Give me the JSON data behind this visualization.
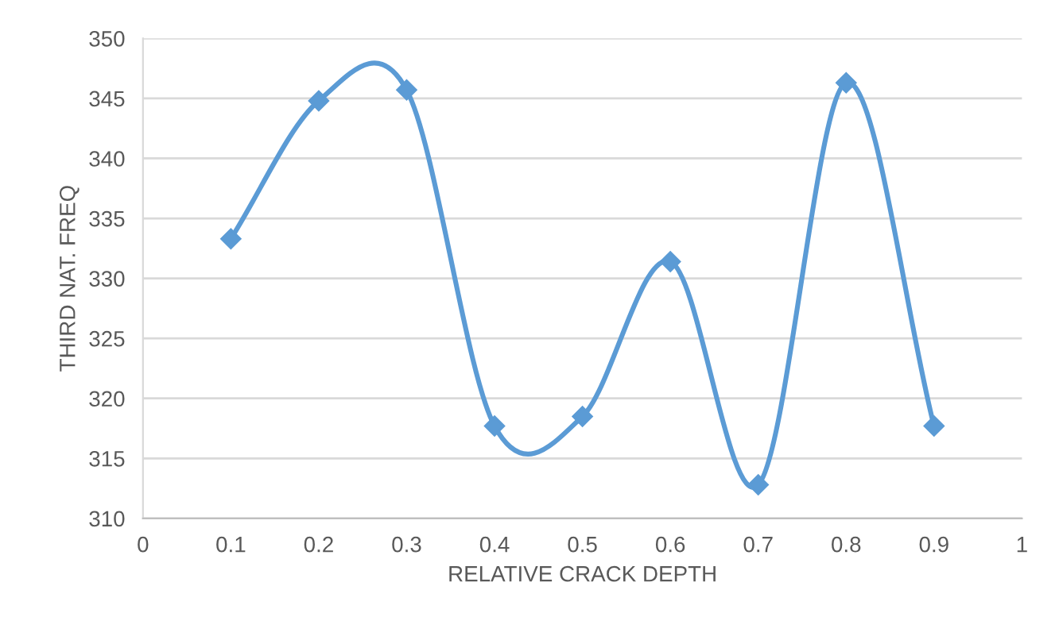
{
  "chart_data": {
    "type": "line",
    "xlabel": "RELATIVE CRACK DEPTH",
    "ylabel": "THIRD NAT. FREQ",
    "x": [
      0.1,
      0.2,
      0.3,
      0.4,
      0.5,
      0.6,
      0.7,
      0.8,
      0.9
    ],
    "series": [
      {
        "color": "#5b9bd5",
        "values": [
          333.3,
          344.8,
          345.7,
          317.7,
          318.5,
          331.4,
          312.8,
          346.3,
          317.7
        ]
      }
    ],
    "xlim": [
      0,
      1
    ],
    "xticks": [
      0,
      0.1,
      0.2,
      0.3,
      0.4,
      0.5,
      0.6,
      0.7,
      0.8,
      0.9,
      1
    ],
    "ylim": [
      310,
      350
    ],
    "yticks": [
      310,
      315,
      320,
      325,
      330,
      335,
      340,
      345,
      350
    ],
    "grid": "y",
    "marker": "diamond",
    "line_style": "solid"
  }
}
